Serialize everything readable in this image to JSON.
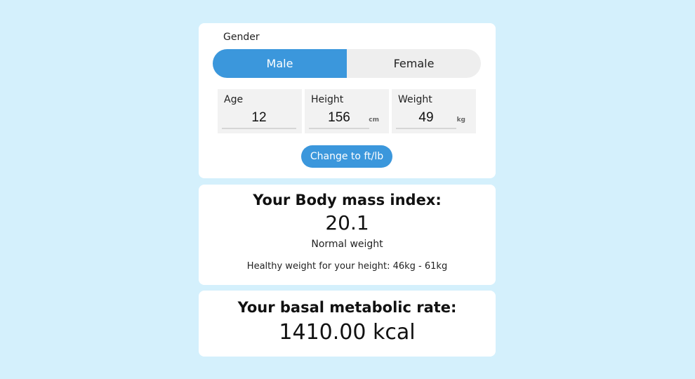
{
  "gender": {
    "label": "Gender",
    "options": [
      "Male",
      "Female"
    ],
    "selected": "Male"
  },
  "fields": {
    "age": {
      "label": "Age",
      "value": "12"
    },
    "height": {
      "label": "Height",
      "value": "156",
      "unit": "cm"
    },
    "weight": {
      "label": "Weight",
      "value": "49",
      "unit": "kg"
    }
  },
  "unit_toggle_label": "Change to ft/lb",
  "bmi": {
    "title": "Your Body mass index:",
    "value": "20.1",
    "category": "Normal weight",
    "healthy_range": "Healthy weight for your height: 46kg - 61kg"
  },
  "bmr": {
    "title": "Your basal metabolic rate:",
    "value": "1410.00 kcal"
  },
  "colors": {
    "background": "#d4f0fc",
    "accent": "#3b97dc",
    "card": "#ffffff"
  }
}
